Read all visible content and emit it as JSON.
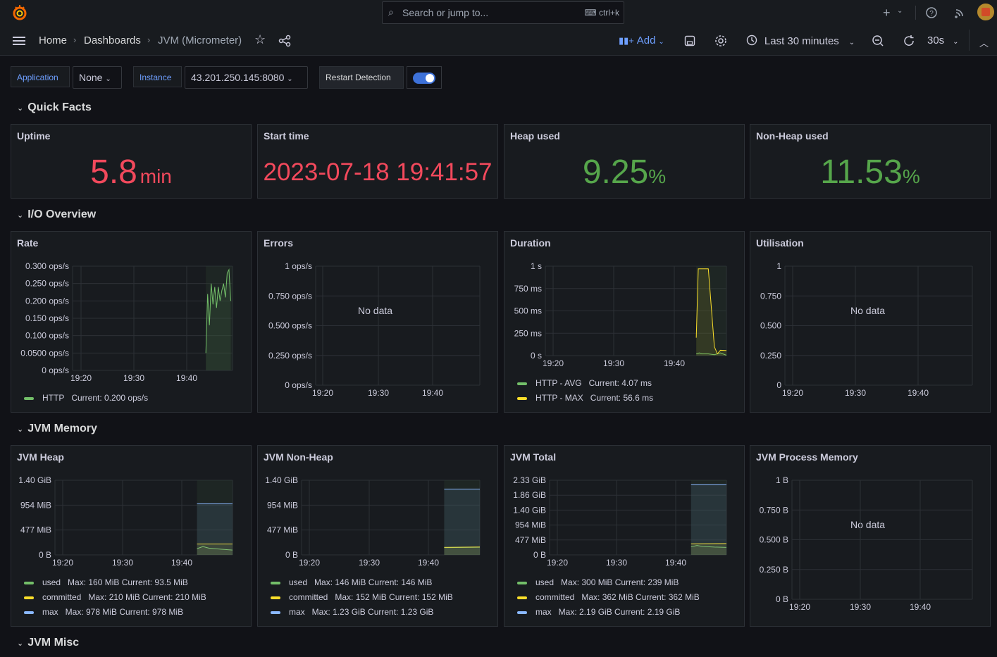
{
  "topbar": {
    "search_placeholder": "Search or jump to...",
    "search_shortcut": "ctrl+k",
    "plus_label": "+"
  },
  "breadcrumbs": [
    "Home",
    "Dashboards",
    "JVM (Micrometer)"
  ],
  "toolbar": {
    "add_label": "Add",
    "time_range": "Last 30 minutes",
    "refresh_interval": "30s"
  },
  "variables": {
    "application_label": "Application",
    "application_value": "None",
    "instance_label": "Instance",
    "instance_value": "43.201.250.145:8080",
    "restart_label": "Restart Detection",
    "restart_enabled": true
  },
  "rows": {
    "quick_facts": "Quick Facts",
    "io_overview": "I/O Overview",
    "jvm_memory": "JVM Memory",
    "jvm_misc": "JVM Misc"
  },
  "colors": {
    "green": "#73bf69",
    "yellow": "#fade2a",
    "cyan": "#8ab8ff",
    "red": "#f2495c",
    "stat_green": "#56a64b",
    "accent": "#3d71d9"
  },
  "stats": {
    "uptime": {
      "title": "Uptime",
      "value": "5.8",
      "unit": "min"
    },
    "start_time": {
      "title": "Start time",
      "value": "2023-07-18 19:41:57"
    },
    "heap_used": {
      "title": "Heap used",
      "value": "9.25",
      "unit": "%"
    },
    "nonheap_used": {
      "title": "Non-Heap used",
      "value": "11.53",
      "unit": "%"
    }
  },
  "no_data": "No data",
  "chart_data": [
    {
      "id": "rate",
      "title": "Rate",
      "type": "line",
      "yticks": [
        "0.300 ops/s",
        "0.250 ops/s",
        "0.200 ops/s",
        "0.150 ops/s",
        "0.100 ops/s",
        "0.0500 ops/s",
        "0 ops/s"
      ],
      "xticks": [
        "19:20",
        "19:30",
        "19:40"
      ],
      "ylim": [
        0,
        0.3
      ],
      "series": [
        {
          "name": "HTTP",
          "legend": "Current: 0.200 ops/s",
          "color": "green",
          "x": [
            "19:43",
            "19:43:20",
            "19:43:40",
            "19:44",
            "19:44:20",
            "19:44:40",
            "19:45",
            "19:45:20",
            "19:45:40",
            "19:46",
            "19:46:20",
            "19:46:40",
            "19:47",
            "19:47:20",
            "19:47:40"
          ],
          "values": [
            0.05,
            0.22,
            0.13,
            0.25,
            0.19,
            0.24,
            0.18,
            0.24,
            0.2,
            0.23,
            0.25,
            0.21,
            0.28,
            0.29,
            0.2
          ]
        }
      ]
    },
    {
      "id": "errors",
      "title": "Errors",
      "type": "line",
      "yticks": [
        "1 ops/s",
        "0.750 ops/s",
        "0.500 ops/s",
        "0.250 ops/s",
        "0 ops/s"
      ],
      "xticks": [
        "19:20",
        "19:30",
        "19:40"
      ],
      "nodata": true
    },
    {
      "id": "duration",
      "title": "Duration",
      "type": "line",
      "yticks": [
        "1 s",
        "750 ms",
        "500 ms",
        "250 ms",
        "0 s"
      ],
      "xticks": [
        "19:20",
        "19:30",
        "19:40"
      ],
      "ylim": [
        0,
        1
      ],
      "series": [
        {
          "name": "HTTP - AVG",
          "legend": "Current: 4.07 ms",
          "color": "green",
          "x": [
            "19:43",
            "19:43:30",
            "19:44",
            "19:45",
            "19:46",
            "19:47",
            "19:48"
          ],
          "values": [
            0.02,
            0.03,
            0.02,
            0.02,
            0.01,
            0.03,
            0.004
          ]
        },
        {
          "name": "HTTP - MAX",
          "legend": "Current: 56.6 ms",
          "color": "yellow",
          "x": [
            "19:43",
            "19:43:20",
            "19:44",
            "19:45",
            "19:46",
            "19:46:30",
            "19:47",
            "19:48"
          ],
          "values": [
            0.2,
            0.97,
            0.97,
            0.97,
            0.1,
            0.02,
            0.06,
            0.057
          ]
        }
      ]
    },
    {
      "id": "utilisation",
      "title": "Utilisation",
      "type": "line",
      "yticks": [
        "1",
        "0.750",
        "0.500",
        "0.250",
        "0"
      ],
      "xticks": [
        "19:20",
        "19:30",
        "19:40"
      ],
      "nodata": true
    },
    {
      "id": "jvm_heap",
      "title": "JVM Heap",
      "type": "area",
      "yticks": [
        "1.40 GiB",
        "954 MiB",
        "477 MiB",
        "0 B"
      ],
      "xticks": [
        "19:20",
        "19:30",
        "19:40"
      ],
      "ylim": [
        0,
        1431
      ],
      "series": [
        {
          "name": "used",
          "legend": "Max: 160 MiB  Current: 93.5 MiB",
          "color": "green",
          "x": [
            "19:42",
            "19:43",
            "19:44",
            "19:46",
            "19:48"
          ],
          "values": [
            120,
            160,
            130,
            110,
            93.5
          ]
        },
        {
          "name": "committed",
          "legend": "Max: 210 MiB  Current: 210 MiB",
          "color": "yellow",
          "x": [
            "19:42",
            "19:48"
          ],
          "values": [
            210,
            210
          ]
        },
        {
          "name": "max",
          "legend": "Max: 978 MiB  Current: 978 MiB",
          "color": "cyan",
          "x": [
            "19:42",
            "19:48"
          ],
          "values": [
            978,
            978
          ]
        }
      ]
    },
    {
      "id": "jvm_nonheap",
      "title": "JVM Non-Heap",
      "type": "area",
      "yticks": [
        "1.40 GiB",
        "954 MiB",
        "477 MiB",
        "0 B"
      ],
      "xticks": [
        "19:20",
        "19:30",
        "19:40"
      ],
      "ylim": [
        0,
        1431
      ],
      "series": [
        {
          "name": "used",
          "legend": "Max: 146 MiB  Current: 146 MiB",
          "color": "green",
          "x": [
            "19:42",
            "19:48"
          ],
          "values": [
            140,
            146
          ]
        },
        {
          "name": "committed",
          "legend": "Max: 152 MiB  Current: 152 MiB",
          "color": "yellow",
          "x": [
            "19:42",
            "19:48"
          ],
          "values": [
            145,
            152
          ]
        },
        {
          "name": "max",
          "legend": "Max: 1.23 GiB  Current: 1.23 GiB",
          "color": "cyan",
          "x": [
            "19:42",
            "19:48"
          ],
          "values": [
            1260,
            1260
          ]
        }
      ]
    },
    {
      "id": "jvm_total",
      "title": "JVM Total",
      "type": "area",
      "yticks": [
        "2.33 GiB",
        "1.86 GiB",
        "1.40 GiB",
        "954 MiB",
        "477 MiB",
        "0 B"
      ],
      "xticks": [
        "19:20",
        "19:30",
        "19:40"
      ],
      "ylim": [
        0,
        2384
      ],
      "series": [
        {
          "name": "used",
          "legend": "Max: 300 MiB  Current: 239 MiB",
          "color": "green",
          "x": [
            "19:42",
            "19:43",
            "19:44",
            "19:46",
            "19:48"
          ],
          "values": [
            260,
            300,
            270,
            250,
            239
          ]
        },
        {
          "name": "committed",
          "legend": "Max: 362 MiB  Current: 362 MiB",
          "color": "yellow",
          "x": [
            "19:42",
            "19:48"
          ],
          "values": [
            355,
            362
          ]
        },
        {
          "name": "max",
          "legend": "Max: 2.19 GiB  Current: 2.19 GiB",
          "color": "cyan",
          "x": [
            "19:42",
            "19:48"
          ],
          "values": [
            2240,
            2240
          ]
        }
      ]
    },
    {
      "id": "jvm_process",
      "title": "JVM Process Memory",
      "type": "line",
      "yticks": [
        "1 B",
        "0.750 B",
        "0.500 B",
        "0.250 B",
        "0 B"
      ],
      "xticks": [
        "19:20",
        "19:30",
        "19:40"
      ],
      "nodata": true
    }
  ]
}
